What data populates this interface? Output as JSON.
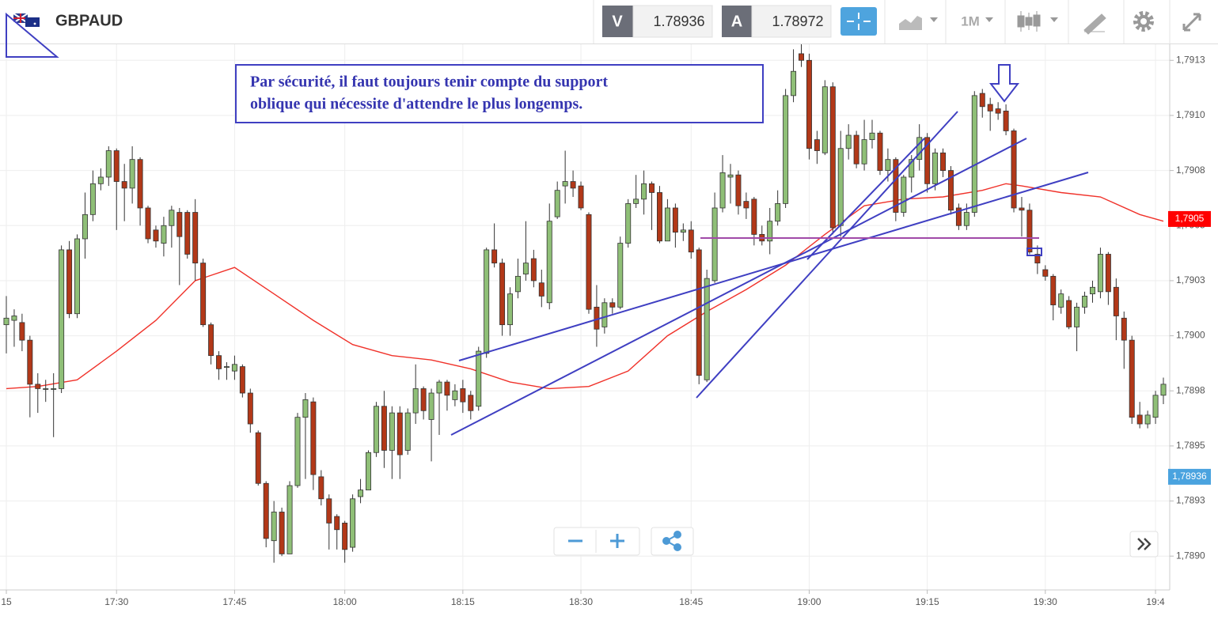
{
  "header": {
    "symbol": "GBPAUD",
    "bid_label": "V",
    "bid": "1.78936",
    "ask_label": "A",
    "ask": "1.78972",
    "timeframe": "1M"
  },
  "chart_data": {
    "type": "candlestick",
    "annotation": [
      "Par sécurité, il faut toujours tenir compte du support",
      "oblique qui nécessite d'attendre le plus longemps."
    ],
    "categories": [
      "15",
      null,
      null,
      null,
      null,
      null,
      null,
      null,
      null,
      null,
      null,
      null,
      null,
      null,
      "17:30",
      null,
      null,
      null,
      null,
      null,
      null,
      null,
      null,
      null,
      null,
      null,
      null,
      null,
      null,
      "17:45",
      null,
      null,
      null,
      null,
      null,
      null,
      null,
      null,
      null,
      null,
      null,
      null,
      null,
      "18:00",
      null,
      null,
      null,
      null,
      null,
      null,
      null,
      null,
      null,
      null,
      null,
      null,
      null,
      null,
      "18:15",
      null,
      null,
      null,
      null,
      null,
      null,
      null,
      null,
      null,
      null,
      null,
      null,
      null,
      null,
      "18:30",
      null,
      null,
      null,
      null,
      null,
      null,
      null,
      null,
      null,
      null,
      null,
      null,
      null,
      "18:45",
      null,
      null,
      null,
      null,
      null,
      null,
      null,
      null,
      null,
      null,
      null,
      null,
      null,
      null,
      "19:00",
      null,
      null,
      null,
      null,
      null,
      null,
      null,
      null,
      null,
      null,
      null,
      null,
      null,
      null,
      "19:15",
      null,
      null,
      null,
      null,
      null,
      null,
      null,
      null,
      null,
      null,
      null,
      null,
      null,
      null,
      "19:30",
      null,
      null,
      null,
      null,
      null,
      null,
      null,
      null,
      null,
      null,
      null,
      null,
      null,
      "19:4",
      null
    ],
    "open": [
      1.79005,
      1.79007,
      1.79006,
      1.78998,
      1.78978,
      1.78976,
      1.78976,
      1.78976,
      1.79039,
      1.7901,
      1.79044,
      1.79055,
      1.79069,
      1.79072,
      1.79084,
      1.7907,
      1.79067,
      1.7908,
      1.79058,
      1.79048,
      1.79042,
      1.7905,
      1.79056,
      1.79056,
      1.79056,
      1.79033,
      1.79005,
      1.78991,
      1.78986,
      1.78984,
      1.78986,
      1.78974,
      1.78956,
      1.78933,
      1.78907,
      1.7892,
      1.78901,
      1.78932,
      1.78963,
      1.7897,
      1.78936,
      1.78926,
      1.78918,
      1.78915,
      1.78904,
      1.78927,
      1.7893,
      1.78947,
      1.78968,
      1.78948,
      1.78965,
      1.78948,
      1.78965,
      1.78976,
      1.78962,
      1.78974,
      1.78979,
      1.78971,
      1.78976,
      1.78973,
      1.78968,
      1.78992,
      1.79039,
      1.79033,
      1.79005,
      1.7902,
      1.79028,
      1.79035,
      1.79024,
      1.79015,
      1.79054,
      1.79068,
      1.7907,
      1.79068,
      1.79055,
      1.79013,
      1.79004,
      1.79015,
      1.79013,
      1.79042,
      1.7906,
      1.79062,
      1.79069,
      1.79065,
      1.79043,
      1.79058,
      1.79047,
      1.79048,
      1.79039,
      1.7898,
      1.79025,
      1.79058,
      1.79072,
      1.79073,
      1.79061,
      1.79062,
      1.79046,
      1.79043,
      1.79052,
      1.7906,
      1.79109,
      1.79128,
      1.79125,
      1.79089,
      1.79083,
      1.79113,
      1.7905,
      1.79085,
      1.79091,
      1.79078,
      1.79089,
      1.79092,
      1.79075,
      1.7908,
      1.79056,
      1.79072,
      1.7908,
      1.7909,
      1.79069,
      1.79083,
      1.79075,
      1.79058,
      1.7905,
      1.79056,
      1.7911,
      1.79105,
      1.79103,
      1.79102,
      1.79093,
      1.79058,
      1.79057,
      1.79037,
      1.7903,
      1.79027,
      1.79013,
      1.79016,
      1.79004,
      1.79013,
      1.79019,
      1.7902,
      1.79037,
      1.79022,
      1.79008,
      1.78998,
      1.78964,
      1.7896,
      1.78963,
      1.78973
    ],
    "high": [
      1.79018,
      1.79012,
      1.7901,
      1.79,
      1.78983,
      1.7898,
      1.78983,
      1.79041,
      1.79043,
      1.79046,
      1.79065,
      1.79075,
      1.79076,
      1.79086,
      1.79085,
      1.79078,
      1.79086,
      1.79081,
      1.79059,
      1.7905,
      1.79054,
      1.79059,
      1.79058,
      1.79057,
      1.79062,
      1.79035,
      1.79006,
      1.78993,
      1.78988,
      1.78991,
      1.78987,
      1.78976,
      1.78957,
      1.78934,
      1.78925,
      1.78922,
      1.78934,
      1.78965,
      1.78974,
      1.78972,
      1.78939,
      1.78928,
      1.78919,
      1.78916,
      1.78928,
      1.78935,
      1.78948,
      1.7897,
      1.78975,
      1.78968,
      1.78968,
      1.78967,
      1.78987,
      1.78977,
      1.78976,
      1.7898,
      1.7898,
      1.78978,
      1.7898,
      1.78975,
      1.78995,
      1.7904,
      1.79051,
      1.79035,
      1.79022,
      1.79035,
      1.79052,
      1.79039,
      1.7903,
      1.7906,
      1.7907,
      1.79084,
      1.79075,
      1.7907,
      1.79056,
      1.79023,
      1.79017,
      1.79017,
      1.79045,
      1.79062,
      1.79073,
      1.79075,
      1.7907,
      1.79068,
      1.79062,
      1.7906,
      1.79051,
      1.79052,
      1.7904,
      1.7903,
      1.79065,
      1.79082,
      1.79078,
      1.79075,
      1.79065,
      1.79063,
      1.7905,
      1.79058,
      1.79066,
      1.79112,
      1.7913,
      1.79133,
      1.79128,
      1.79093,
      1.79116,
      1.79115,
      1.79093,
      1.79096,
      1.79093,
      1.79098,
      1.79098,
      1.79093,
      1.79085,
      1.79081,
      1.79073,
      1.79082,
      1.79096,
      1.79092,
      1.79085,
      1.79085,
      1.79077,
      1.7906,
      1.7906,
      1.79111,
      1.79112,
      1.79108,
      1.79106,
      1.79105,
      1.79094,
      1.79063,
      1.7906,
      1.79041,
      1.79032,
      1.79028,
      1.79021,
      1.79018,
      1.79015,
      1.7902,
      1.79025,
      1.7904,
      1.79038,
      1.79026,
      1.79011,
      1.79,
      1.7897,
      1.78966,
      1.78975,
      1.78981
    ],
    "low": [
      1.78992,
      1.78995,
      1.78993,
      1.78963,
      1.78965,
      1.7897,
      1.78954,
      1.78974,
      1.79008,
      1.79008,
      1.79035,
      1.79052,
      1.79066,
      1.79068,
      1.79048,
      1.79052,
      1.7906,
      1.7905,
      1.79042,
      1.7904,
      1.79036,
      1.7904,
      1.79023,
      1.79035,
      1.79025,
      1.79004,
      1.78987,
      1.7898,
      1.7898,
      1.7898,
      1.78972,
      1.78956,
      1.78932,
      1.78904,
      1.78897,
      1.789,
      1.78901,
      1.78931,
      1.78935,
      1.7893,
      1.78923,
      1.78903,
      1.78903,
      1.78897,
      1.78902,
      1.78924,
      1.7893,
      1.78945,
      1.7894,
      1.78935,
      1.78935,
      1.78946,
      1.7896,
      1.78962,
      1.78943,
      1.78955,
      1.78966,
      1.78968,
      1.78965,
      1.78962,
      1.78966,
      1.7899,
      1.79031,
      1.79,
      1.79,
      1.79017,
      1.79025,
      1.79022,
      1.79013,
      1.79012,
      1.79053,
      1.7906,
      1.79063,
      1.79057,
      1.7901,
      1.78995,
      1.79001,
      1.7901,
      1.79012,
      1.7904,
      1.79058,
      1.79055,
      1.79048,
      1.79042,
      1.79043,
      1.7904,
      1.79043,
      1.79035,
      1.78978,
      1.78979,
      1.79024,
      1.79056,
      1.7906,
      1.79055,
      1.79053,
      1.79041,
      1.79041,
      1.79037,
      1.7905,
      1.79058,
      1.79106,
      1.79122,
      1.7908,
      1.79078,
      1.79082,
      1.79046,
      1.79045,
      1.7908,
      1.79076,
      1.79075,
      1.79085,
      1.79073,
      1.7907,
      1.79052,
      1.79054,
      1.79065,
      1.79075,
      1.79065,
      1.79066,
      1.79072,
      1.79055,
      1.79048,
      1.79048,
      1.79054,
      1.79099,
      1.79093,
      1.79098,
      1.79091,
      1.79056,
      1.79045,
      1.79037,
      1.79028,
      1.79025,
      1.79007,
      1.7901,
      1.79003,
      1.78993,
      1.7901,
      1.79015,
      1.79017,
      1.79014,
      1.78998,
      1.78985,
      1.7896,
      1.78958,
      1.78958,
      1.7896,
      1.78969
    ],
    "close": [
      1.79008,
      1.79009,
      1.78998,
      1.78978,
      1.78976,
      1.78976,
      1.78976,
      1.79039,
      1.7901,
      1.79044,
      1.79055,
      1.79069,
      1.79072,
      1.79084,
      1.7907,
      1.79067,
      1.7908,
      1.79058,
      1.79044,
      1.79043,
      1.7905,
      1.79057,
      1.79045,
      1.79037,
      1.79033,
      1.79005,
      1.78991,
      1.78985,
      1.78986,
      1.78987,
      1.78974,
      1.7896,
      1.78933,
      1.78908,
      1.7892,
      1.78901,
      1.78932,
      1.78963,
      1.78971,
      1.78937,
      1.78926,
      1.78915,
      1.78912,
      1.78903,
      1.78926,
      1.7893,
      1.78947,
      1.78968,
      1.78948,
      1.78965,
      1.78946,
      1.78965,
      1.78976,
      1.78966,
      1.78974,
      1.78979,
      1.78973,
      1.78975,
      1.7897,
      1.78966,
      1.78993,
      1.79039,
      1.79033,
      1.79005,
      1.79019,
      1.79027,
      1.79033,
      1.79025,
      1.79018,
      1.79052,
      1.79066,
      1.7907,
      1.79067,
      1.79058,
      1.79012,
      1.79003,
      1.79015,
      1.79013,
      1.79042,
      1.7906,
      1.79062,
      1.79069,
      1.79065,
      1.79043,
      1.79058,
      1.79047,
      1.79048,
      1.79038,
      1.78982,
      1.79026,
      1.79058,
      1.79074,
      1.79073,
      1.79059,
      1.79058,
      1.79046,
      1.79043,
      1.79052,
      1.7906,
      1.79109,
      1.7912,
      1.79125,
      1.79085,
      1.79084,
      1.79113,
      1.79049,
      1.79085,
      1.79091,
      1.79078,
      1.79089,
      1.79092,
      1.79075,
      1.7908,
      1.79056,
      1.79072,
      1.7908,
      1.7909,
      1.79069,
      1.79083,
      1.79075,
      1.79057,
      1.7905,
      1.79056,
      1.79109,
      1.79104,
      1.79102,
      1.79101,
      1.79093,
      1.79058,
      1.79057,
      1.79038,
      1.79033,
      1.79027,
      1.79014,
      1.79019,
      1.79004,
      1.79013,
      1.79018,
      1.79022,
      1.79037,
      1.7902,
      1.79009,
      1.78998,
      1.78963,
      1.7896,
      1.78964,
      1.78973,
      1.78978
    ],
    "up_color": "#8fbf77",
    "down_color": "#b23818",
    "ma": {
      "color": "#f0322a",
      "x": [
        0,
        4,
        9,
        14,
        19,
        24,
        29,
        34,
        39,
        44,
        49,
        54,
        59,
        64,
        69,
        74,
        79,
        84,
        89,
        94,
        99,
        104,
        109,
        114,
        119,
        124,
        127,
        129,
        134,
        139,
        144,
        147
      ],
      "values": [
        1.78976,
        1.78977,
        1.7898,
        1.78993,
        1.79007,
        1.79025,
        1.79031,
        1.79019,
        1.79007,
        1.78996,
        1.78991,
        1.78989,
        1.78985,
        1.78979,
        1.78976,
        1.78977,
        1.78984,
        1.79,
        1.79011,
        1.79021,
        1.79032,
        1.79046,
        1.79059,
        1.79062,
        1.79063,
        1.79066,
        1.79069,
        1.79068,
        1.79065,
        1.79063,
        1.79055,
        1.79052
      ]
    },
    "price_labels": [
      {
        "value": 1.79053,
        "label": "1,7905",
        "color": "#ff0000"
      },
      {
        "value": 1.78936,
        "label": "1,78936",
        "color": "#4aa3df"
      }
    ],
    "ylim": [
      1.78885,
      1.79133
    ],
    "yticks": [
      {
        "value": 1.789,
        "label": "1,7890"
      },
      {
        "value": 1.78925,
        "label": "1,7893"
      },
      {
        "value": 1.7895,
        "label": "1,7895"
      },
      {
        "value": 1.78975,
        "label": "1,7898"
      },
      {
        "value": 1.79,
        "label": "1,7900"
      },
      {
        "value": 1.79025,
        "label": "1,7903"
      },
      {
        "value": 1.7905,
        "label": "1,7905"
      },
      {
        "value": 1.79075,
        "label": "1,7908"
      },
      {
        "value": 1.791,
        "label": "1,7910"
      },
      {
        "value": 1.79125,
        "label": "1,7913"
      }
    ],
    "grid": true
  }
}
